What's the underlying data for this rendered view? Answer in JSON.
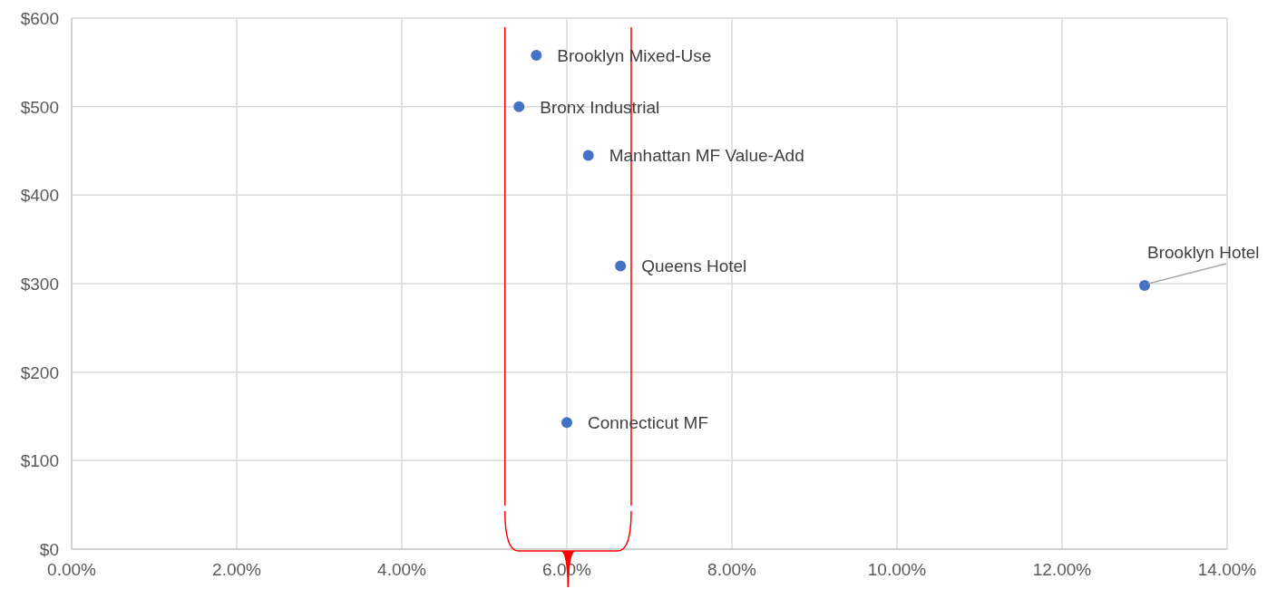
{
  "chart_data": {
    "type": "scatter",
    "marker": "circle",
    "grid": true,
    "legend": false,
    "xlim": [
      0,
      14
    ],
    "ylim": [
      0,
      600
    ],
    "xticks": [
      {
        "value": 0,
        "label": "0.00%"
      },
      {
        "value": 2,
        "label": "2.00%"
      },
      {
        "value": 4,
        "label": "4.00%"
      },
      {
        "value": 6,
        "label": "6.00%"
      },
      {
        "value": 8,
        "label": "8.00%"
      },
      {
        "value": 10,
        "label": "10.00%"
      },
      {
        "value": 12,
        "label": "12.00%"
      },
      {
        "value": 14,
        "label": "14.00%"
      }
    ],
    "yticks": [
      {
        "value": 0,
        "label": "$0"
      },
      {
        "value": 100,
        "label": "$100"
      },
      {
        "value": 200,
        "label": "$200"
      },
      {
        "value": 300,
        "label": "$300"
      },
      {
        "value": 400,
        "label": "$400"
      },
      {
        "value": 500,
        "label": "$500"
      },
      {
        "value": 600,
        "label": "$600"
      }
    ],
    "series": [
      {
        "name": "Brooklyn Mixed-Use",
        "color": "#4472c4",
        "x": [
          5.63
        ],
        "values": [
          558
        ]
      },
      {
        "name": "Bronx Industrial",
        "color": "#4472c4",
        "x": [
          5.42
        ],
        "values": [
          500
        ]
      },
      {
        "name": "Manhattan MF Value-Add",
        "color": "#4472c4",
        "x": [
          6.26
        ],
        "values": [
          445
        ]
      },
      {
        "name": "Queens Hotel",
        "color": "#4472c4",
        "x": [
          6.65
        ],
        "values": [
          320
        ]
      },
      {
        "name": "Connecticut MF",
        "color": "#4472c4",
        "x": [
          6.0
        ],
        "values": [
          143
        ]
      },
      {
        "name": "Brooklyn Hotel",
        "color": "#4472c4",
        "x": [
          13.0
        ],
        "values": [
          298
        ]
      }
    ],
    "ref_lines": [
      {
        "axis": "x",
        "value": 5.25,
        "color": "#ff0000"
      },
      {
        "axis": "x",
        "value": 6.78,
        "color": "#ff0000"
      }
    ]
  }
}
